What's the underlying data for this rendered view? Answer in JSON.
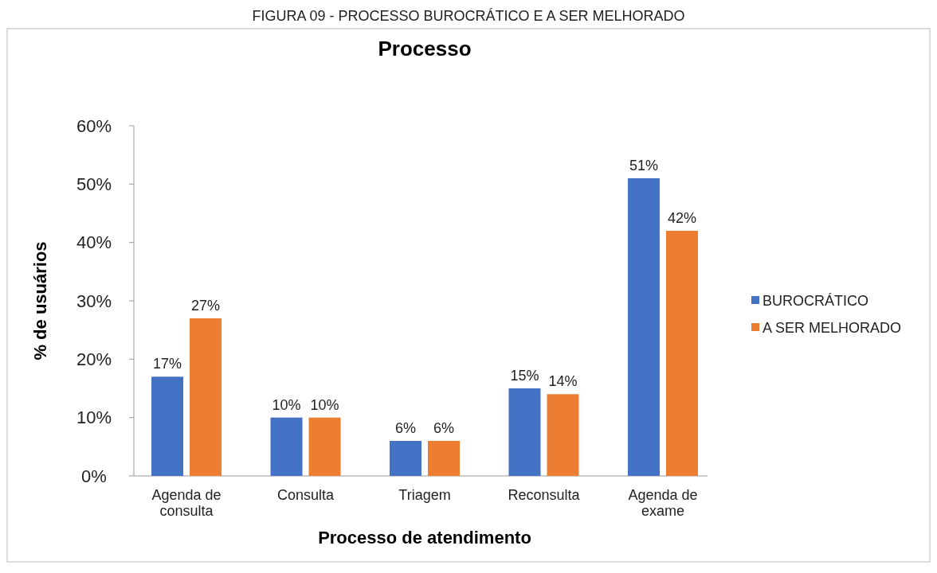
{
  "chart_data": {
    "type": "bar",
    "title": "Processo",
    "xlabel": "Processo de atendimento",
    "ylabel": "% de usuários",
    "annotations": [
      "FIGURA 09 - PROCESSO BUROCRÁTICO E A SER MELHORADO"
    ],
    "categories": [
      "Agenda de consulta",
      "Consulta",
      "Triagem",
      "Reconsulta",
      "Agenda de exame"
    ],
    "series": [
      {
        "name": "BUROCRÁTICO",
        "color": "#4472c4",
        "values": [
          17,
          10,
          6,
          15,
          51
        ],
        "value_labels": [
          "17%",
          "10%",
          "6%",
          "15%",
          "51%"
        ]
      },
      {
        "name": "A SER MELHORADO",
        "color": "#ed7d31",
        "values": [
          27,
          10,
          6,
          14,
          42
        ],
        "value_labels": [
          "27%",
          "10%",
          "6%",
          "14%",
          "42%"
        ]
      }
    ],
    "ylim": [
      0,
      60
    ],
    "yticks": [
      {
        "value": 0,
        "label": "0%"
      },
      {
        "value": 10,
        "label": "10%"
      },
      {
        "value": 20,
        "label": "20%"
      },
      {
        "value": 30,
        "label": "30%"
      },
      {
        "value": 40,
        "label": "40%"
      },
      {
        "value": 50,
        "label": "50%"
      },
      {
        "value": 60,
        "label": "60%"
      }
    ],
    "grid": false,
    "legend": "right"
  }
}
